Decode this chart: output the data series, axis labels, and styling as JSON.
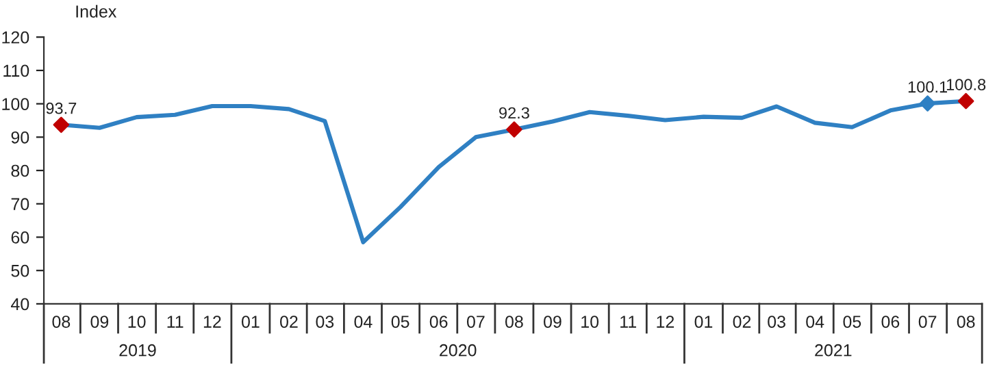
{
  "chart_data": {
    "type": "line",
    "ylabel": "Index",
    "x": [
      "2019-08",
      "2019-09",
      "2019-10",
      "2019-11",
      "2019-12",
      "2020-01",
      "2020-02",
      "2020-03",
      "2020-04",
      "2020-05",
      "2020-06",
      "2020-07",
      "2020-08",
      "2020-09",
      "2020-10",
      "2020-11",
      "2020-12",
      "2021-01",
      "2021-02",
      "2021-03",
      "2021-04",
      "2021-05",
      "2021-06",
      "2021-07",
      "2021-08"
    ],
    "series": [
      {
        "color": "#2f80c3",
        "values": [
          93.7,
          92.8,
          96,
          96.7,
          99.3,
          99.3,
          98.4,
          94.8,
          58.5,
          69,
          81,
          90,
          92.3,
          94.7,
          97.5,
          96.4,
          95.1,
          96.1,
          95.8,
          99.2,
          94.3,
          93,
          98,
          100.1,
          100.8
        ],
        "marker": "none"
      },
      {
        "type": "scatter",
        "marker": "diamond",
        "color": "#c00000",
        "x": [
          "2019-08",
          "2020-08",
          "2021-08"
        ],
        "values": [
          93.7,
          92.3,
          100.8
        ],
        "value_labels": [
          "93.7",
          "92.3",
          "100.8"
        ]
      },
      {
        "type": "scatter",
        "marker": "diamond",
        "color": "#2f80c3",
        "x": [
          "2021-07"
        ],
        "values": [
          100.1
        ],
        "value_labels": [
          "100.1"
        ]
      }
    ],
    "line_style": "solid",
    "xlim": [
      "2019-07-18",
      "2021-08-14"
    ],
    "xticks": [
      {
        "value": "2019-08",
        "label": "08"
      },
      {
        "value": "2019-09",
        "label": "09"
      },
      {
        "value": "2019-10",
        "label": "10"
      },
      {
        "value": "2019-11",
        "label": "11"
      },
      {
        "value": "2019-12",
        "label": "12"
      },
      {
        "value": "2020-01",
        "label": "01"
      },
      {
        "value": "2020-02",
        "label": "02"
      },
      {
        "value": "2020-03",
        "label": "03"
      },
      {
        "value": "2020-04",
        "label": "04"
      },
      {
        "value": "2020-05",
        "label": "05"
      },
      {
        "value": "2020-06",
        "label": "06"
      },
      {
        "value": "2020-07",
        "label": "07"
      },
      {
        "value": "2020-08",
        "label": "08"
      },
      {
        "value": "2020-09",
        "label": "09"
      },
      {
        "value": "2020-10",
        "label": "10"
      },
      {
        "value": "2020-11",
        "label": "11"
      },
      {
        "value": "2020-12",
        "label": "12"
      },
      {
        "value": "2021-01",
        "label": "01"
      },
      {
        "value": "2021-02",
        "label": "02"
      },
      {
        "value": "2021-03",
        "label": "03"
      },
      {
        "value": "2021-04",
        "label": "04"
      },
      {
        "value": "2021-05",
        "label": "05"
      },
      {
        "value": "2021-06",
        "label": "06"
      },
      {
        "value": "2021-07",
        "label": "07"
      },
      {
        "value": "2021-08",
        "label": "08"
      }
    ],
    "ylim": [
      40,
      120
    ],
    "yticks": [
      40,
      50,
      60,
      70,
      80,
      90,
      100,
      110,
      120
    ],
    "grid": false,
    "legend": false,
    "annotations": [
      "2019",
      "2020",
      "2021"
    ]
  }
}
